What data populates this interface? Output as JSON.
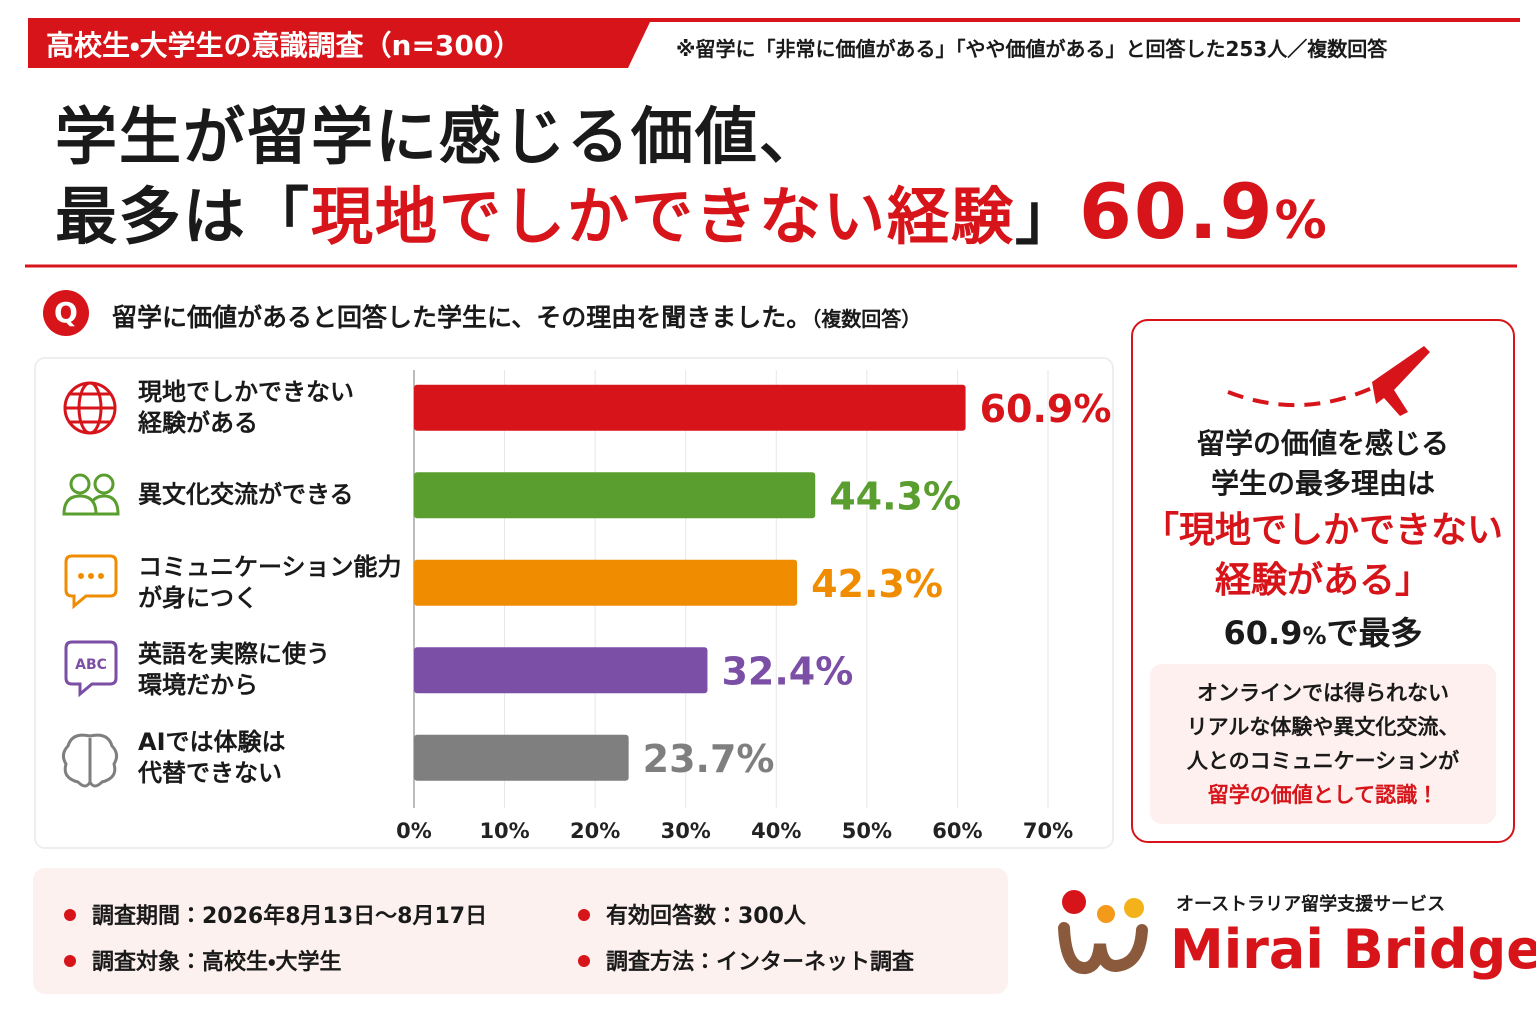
{
  "header": {
    "badge": "高校生・大学生の意識調査（n=300）",
    "note": "※留学に「非常に価値がある」「やや価値がある」と回答した253人／複数回答"
  },
  "headline": {
    "line1": "学生が留学に感じる価値、",
    "line2": [
      "最多は「",
      "現地でしかできない経験",
      "」",
      "60.9",
      "%"
    ]
  },
  "question": {
    "marker": "Q",
    "text": "留学に価値があると回答した学生に、その理由を聞きました。",
    "note": "（複数回答）"
  },
  "chart_data": {
    "type": "bar",
    "orientation": "horizontal",
    "categories": [
      "現地でしかできない\n経験がある",
      "異文化交流ができる",
      "コミュニケーション能力\nが身につく",
      "英語を実際に使う\n環境だから",
      "AIでは体験は\n代替できない"
    ],
    "values": [
      60.9,
      44.3,
      42.3,
      32.4,
      23.7
    ],
    "value_labels": [
      "60.9%",
      "44.3%",
      "42.3%",
      "32.4%",
      "23.7%"
    ],
    "colors": [
      "#d7141a",
      "#5a9e2f",
      "#ef8c00",
      "#7b4fa6",
      "#7f7f7f"
    ],
    "xlim": [
      0,
      70
    ],
    "xticks": [
      {
        "value": 0,
        "label": "0%"
      },
      {
        "value": 10,
        "label": "10%"
      },
      {
        "value": 20,
        "label": "20%"
      },
      {
        "value": 30,
        "label": "30%"
      },
      {
        "value": 40,
        "label": "40%"
      },
      {
        "value": 50,
        "label": "50%"
      },
      {
        "value": 60,
        "label": "60%"
      },
      {
        "value": 70,
        "label": "70%"
      }
    ],
    "grid": true
  },
  "callout": {
    "lines": [
      "留学の価値を感じる",
      "学生の最多理由は"
    ],
    "highlight": [
      "「現地でしかできない",
      "経験がある」"
    ],
    "figure": "60.9",
    "unit": "%",
    "suffix": "で最多",
    "detail": [
      "オンラインでは得られない",
      "リアルな体験や異文化交流、",
      "人とのコミュニケーションが"
    ],
    "detail_highlight": "留学の価値として認識！"
  },
  "footer": {
    "items": [
      "調査期間：2026年8月13日～8月17日",
      "有効回答数：300人",
      "調査対象：高校生・大学生",
      "調査方法：インターネット調査"
    ]
  },
  "brand": {
    "tagline": "オーストラリア留学支援サービス",
    "name": "Mirai Bridge"
  }
}
